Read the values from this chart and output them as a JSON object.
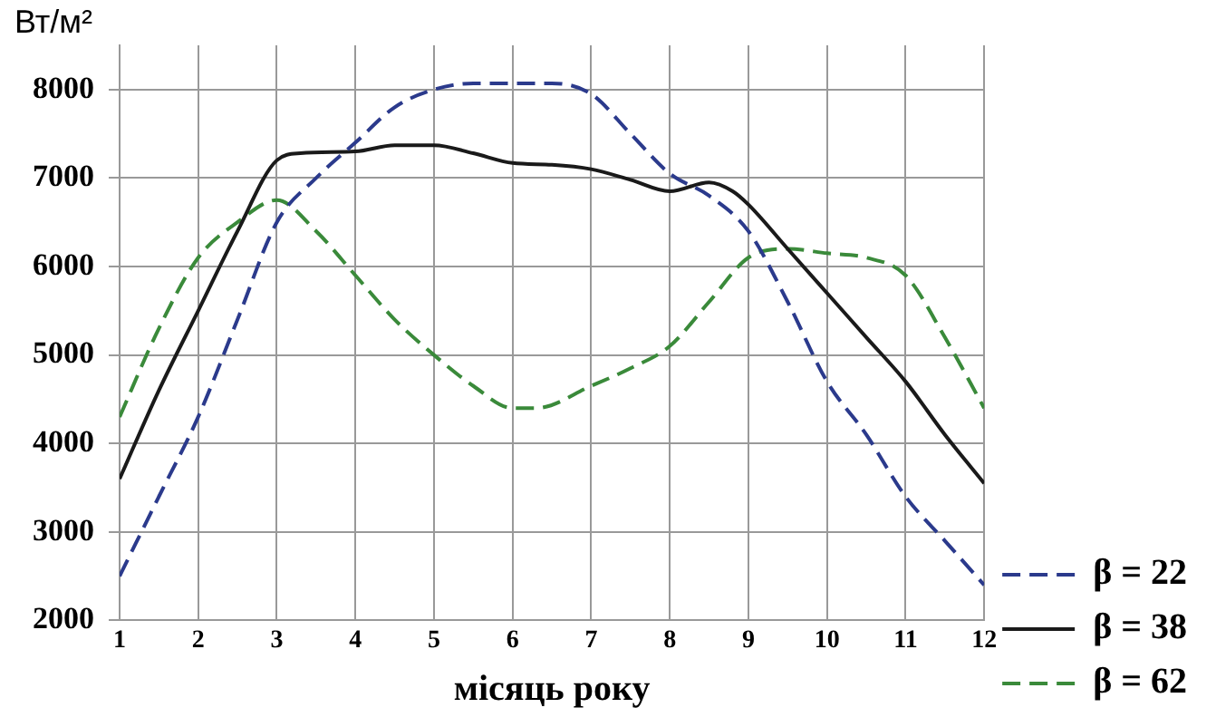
{
  "chart_data": {
    "type": "line",
    "ylabel": "Вт/м²",
    "xlabel": "місяць року",
    "xlim": [
      1,
      12
    ],
    "xticks": [
      1,
      2,
      3,
      4,
      5,
      6,
      7,
      8,
      9,
      10,
      11,
      12
    ],
    "ylim": [
      2000,
      8500
    ],
    "yticks": [
      2000,
      3000,
      4000,
      5000,
      6000,
      7000,
      8000
    ],
    "grid": true,
    "legend": "right",
    "marker": "none",
    "series": [
      {
        "name": "β = 22",
        "color": "#2b3a8c",
        "line_style": "dashed",
        "x": [
          1,
          1.5,
          2,
          2.5,
          3,
          3.5,
          4,
          4.5,
          5,
          5.5,
          6,
          6.5,
          7,
          7.5,
          8,
          8.5,
          9,
          9.5,
          10,
          10.5,
          11,
          11.5,
          12
        ],
        "values": [
          2500,
          3400,
          4300,
          5400,
          6500,
          7000,
          7400,
          7800,
          8000,
          8070,
          8070,
          8070,
          7950,
          7500,
          7050,
          6800,
          6400,
          5600,
          4700,
          4100,
          3400,
          2900,
          2400
        ]
      },
      {
        "name": "β = 38",
        "color": "#1a1a1a",
        "line_style": "solid",
        "x": [
          1,
          1.5,
          2,
          2.5,
          3,
          3.3,
          4,
          4.5,
          5,
          5.5,
          6,
          6.5,
          7,
          7.5,
          8,
          8.5,
          8.8,
          9,
          9.5,
          10,
          10.5,
          11,
          11.5,
          12
        ],
        "values": [
          3600,
          4600,
          5500,
          6400,
          7200,
          7280,
          7300,
          7370,
          7370,
          7280,
          7170,
          7150,
          7100,
          6980,
          6850,
          6950,
          6850,
          6700,
          6200,
          5700,
          5200,
          4700,
          4100,
          3550
        ]
      },
      {
        "name": "β = 62",
        "color": "#3a8a3a",
        "line_style": "dashed",
        "x": [
          1,
          1.5,
          2,
          2.5,
          3,
          3.5,
          4,
          4.5,
          5,
          5.5,
          6,
          6.3,
          7,
          7.5,
          8,
          8.5,
          9,
          9.5,
          10,
          10.5,
          11,
          11.5,
          12
        ],
        "values": [
          4300,
          5300,
          6100,
          6500,
          6750,
          6400,
          5900,
          5400,
          5000,
          4650,
          4400,
          4400,
          4650,
          4850,
          5100,
          5600,
          6100,
          6200,
          6150,
          6100,
          5900,
          5200,
          4400
        ]
      }
    ]
  }
}
